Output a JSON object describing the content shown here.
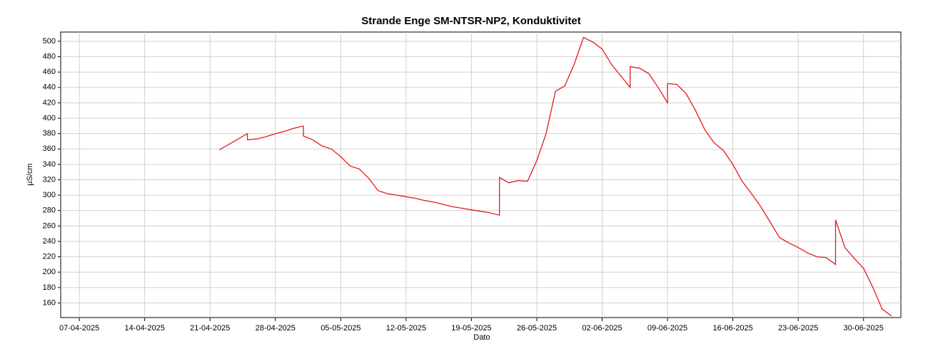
{
  "chart_data": {
    "type": "line",
    "title": "Strande Enge SM-NTSR-NP2, Konduktivitet",
    "xlabel": "Dato",
    "ylabel": "µS/cm",
    "grid": true,
    "xlim": [
      "2025-04-05",
      "2025-07-04"
    ],
    "xticks": [
      {
        "value": "2025-04-07",
        "label": "07-04-2025"
      },
      {
        "value": "2025-04-14",
        "label": "14-04-2025"
      },
      {
        "value": "2025-04-21",
        "label": "21-04-2025"
      },
      {
        "value": "2025-04-28",
        "label": "28-04-2025"
      },
      {
        "value": "2025-05-05",
        "label": "05-05-2025"
      },
      {
        "value": "2025-05-12",
        "label": "12-05-2025"
      },
      {
        "value": "2025-05-19",
        "label": "19-05-2025"
      },
      {
        "value": "2025-05-26",
        "label": "26-05-2025"
      },
      {
        "value": "2025-06-02",
        "label": "02-06-2025"
      },
      {
        "value": "2025-06-09",
        "label": "09-06-2025"
      },
      {
        "value": "2025-06-16",
        "label": "16-06-2025"
      },
      {
        "value": "2025-06-23",
        "label": "23-06-2025"
      },
      {
        "value": "2025-06-30",
        "label": "30-06-2025"
      }
    ],
    "ylim": [
      141,
      512
    ],
    "yticks": [
      160,
      180,
      200,
      220,
      240,
      260,
      280,
      300,
      320,
      340,
      360,
      380,
      400,
      420,
      440,
      460,
      480,
      500
    ],
    "x": [
      "2025-04-22",
      "2025-04-25",
      "2025-04-25",
      "2025-04-26",
      "2025-04-27",
      "2025-04-28",
      "2025-04-29",
      "2025-04-30",
      "2025-05-01",
      "2025-05-01",
      "2025-05-02",
      "2025-05-03",
      "2025-05-04",
      "2025-05-05",
      "2025-05-06",
      "2025-05-07",
      "2025-05-08",
      "2025-05-09",
      "2025-05-10",
      "2025-05-11",
      "2025-05-12",
      "2025-05-13",
      "2025-05-14",
      "2025-05-15",
      "2025-05-16",
      "2025-05-17",
      "2025-05-18",
      "2025-05-19",
      "2025-05-20",
      "2025-05-21",
      "2025-05-22",
      "2025-05-22",
      "2025-05-23",
      "2025-05-24",
      "2025-05-25",
      "2025-05-26",
      "2025-05-27",
      "2025-05-28",
      "2025-05-29",
      "2025-05-30",
      "2025-05-31",
      "2025-06-01",
      "2025-06-02",
      "2025-06-03",
      "2025-06-04",
      "2025-06-05",
      "2025-06-05",
      "2025-06-06",
      "2025-06-07",
      "2025-06-08",
      "2025-06-09",
      "2025-06-09",
      "2025-06-10",
      "2025-06-11",
      "2025-06-12",
      "2025-06-13",
      "2025-06-14",
      "2025-06-15",
      "2025-06-16",
      "2025-06-17",
      "2025-06-18",
      "2025-06-19",
      "2025-06-20",
      "2025-06-21",
      "2025-06-22",
      "2025-06-23",
      "2025-06-24",
      "2025-06-25",
      "2025-06-26",
      "2025-06-27",
      "2025-06-27",
      "2025-06-28",
      "2025-06-29",
      "2025-06-30",
      "2025-07-01",
      "2025-07-02",
      "2025-07-03"
    ],
    "series": [
      {
        "name": "Konduktivitet",
        "color": "#e31a1c",
        "values": [
          359,
          380,
          372,
          373,
          376,
          380,
          383,
          387,
          390,
          377,
          372,
          364,
          360,
          350,
          338,
          334,
          322,
          306,
          302,
          300,
          298,
          296,
          293,
          291,
          288,
          285,
          283,
          281,
          279,
          277,
          274,
          323,
          316,
          319,
          318,
          345,
          380,
          435,
          442,
          470,
          505,
          499,
          490,
          470,
          455,
          440,
          467,
          465,
          458,
          440,
          420,
          445,
          444,
          432,
          410,
          385,
          368,
          358,
          340,
          318,
          302,
          285,
          265,
          245,
          238,
          232,
          225,
          220,
          219,
          210,
          268,
          232,
          218,
          205,
          180,
          152,
          143
        ]
      }
    ]
  }
}
